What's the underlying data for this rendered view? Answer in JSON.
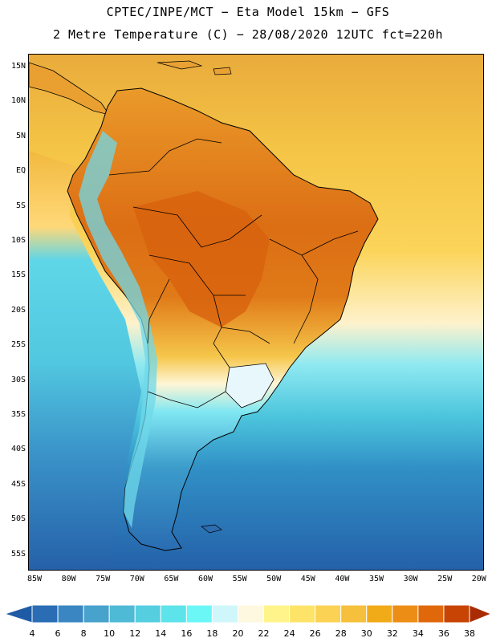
{
  "header": {
    "line1": "CPTEC/INPE/MCT −  Eta Model 15km − GFS",
    "line2": "2 Metre Temperature (C) − 28/08/2020 12UTC fct=220h"
  },
  "axes": {
    "lat_labels": [
      "15N",
      "10N",
      "5N",
      "EQ",
      "5S",
      "10S",
      "15S",
      "20S",
      "25S",
      "30S",
      "35S",
      "40S",
      "45S",
      "50S",
      "55S"
    ],
    "lon_labels": [
      "85W",
      "80W",
      "75W",
      "70W",
      "65W",
      "60W",
      "55W",
      "50W",
      "45W",
      "40W",
      "35W",
      "30W",
      "25W",
      "20W"
    ]
  },
  "legend": {
    "labels": [
      "4",
      "6",
      "8",
      "10",
      "12",
      "14",
      "16",
      "18",
      "20",
      "22",
      "24",
      "26",
      "28",
      "30",
      "32",
      "34",
      "36",
      "38"
    ],
    "colors": [
      "#1f5aa5",
      "#2a6db4",
      "#3a86c2",
      "#47a2cc",
      "#4fbad6",
      "#55cfe0",
      "#5de3ea",
      "#6cf7f7",
      "#cff7fb",
      "#fff8e0",
      "#fff48a",
      "#fde468",
      "#fbd254",
      "#f6c03c",
      "#f1aa18",
      "#ec8e16",
      "#e0680a",
      "#c84404",
      "#aa2c04"
    ]
  },
  "map": {
    "ocean_gradient": [
      "#ecb242",
      "#f5c848",
      "#fbd65a",
      "#fef0c4",
      "#6de3ee",
      "#3fb6d6",
      "#2a7bbf",
      "#245fa8"
    ]
  }
}
